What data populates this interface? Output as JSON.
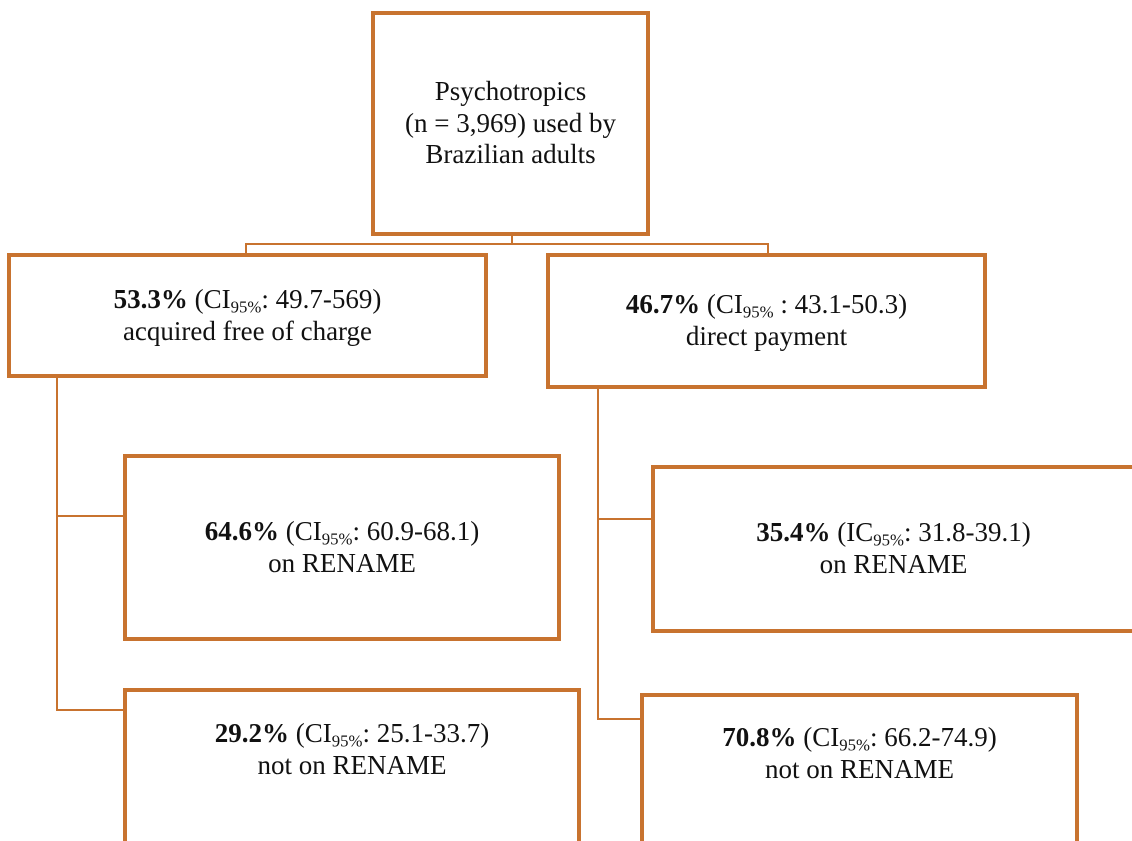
{
  "colors": {
    "stroke": "#C8732F",
    "text": "#111111"
  },
  "root": {
    "line1": "Psychotropics",
    "line2": "(n = 3,969) used by",
    "line3": "Brazilian adults"
  },
  "free": {
    "pct": "53.3%",
    "ci_open": " (CI",
    "ci_sub": "95%",
    "ci_close": ": 49.7-569)",
    "desc": "acquired free of charge"
  },
  "paid": {
    "pct": "46.7%",
    "ci_open": " (CI",
    "ci_sub": "95%",
    "ci_close": " : 43.1-50.3)",
    "desc": "direct payment"
  },
  "free_on": {
    "pct": "64.6%",
    "ci_open": " (CI",
    "ci_sub": "95%",
    "ci_close": ": 60.9-68.1)",
    "desc": "on RENAME"
  },
  "free_off": {
    "pct": "29.2%",
    "ci_open": " (CI",
    "ci_sub": "95%",
    "ci_close": ": 25.1-33.7)",
    "desc": "not on RENAME"
  },
  "paid_on": {
    "pct": "35.4%",
    "ci_open": " (IC",
    "ci_sub": "95%",
    "ci_close": ": 31.8-39.1)",
    "desc": "on RENAME"
  },
  "paid_off": {
    "pct": "70.8%",
    "ci_open": " (CI",
    "ci_sub": "95%",
    "ci_close": ": 66.2-74.9)",
    "desc": "not on RENAME"
  }
}
